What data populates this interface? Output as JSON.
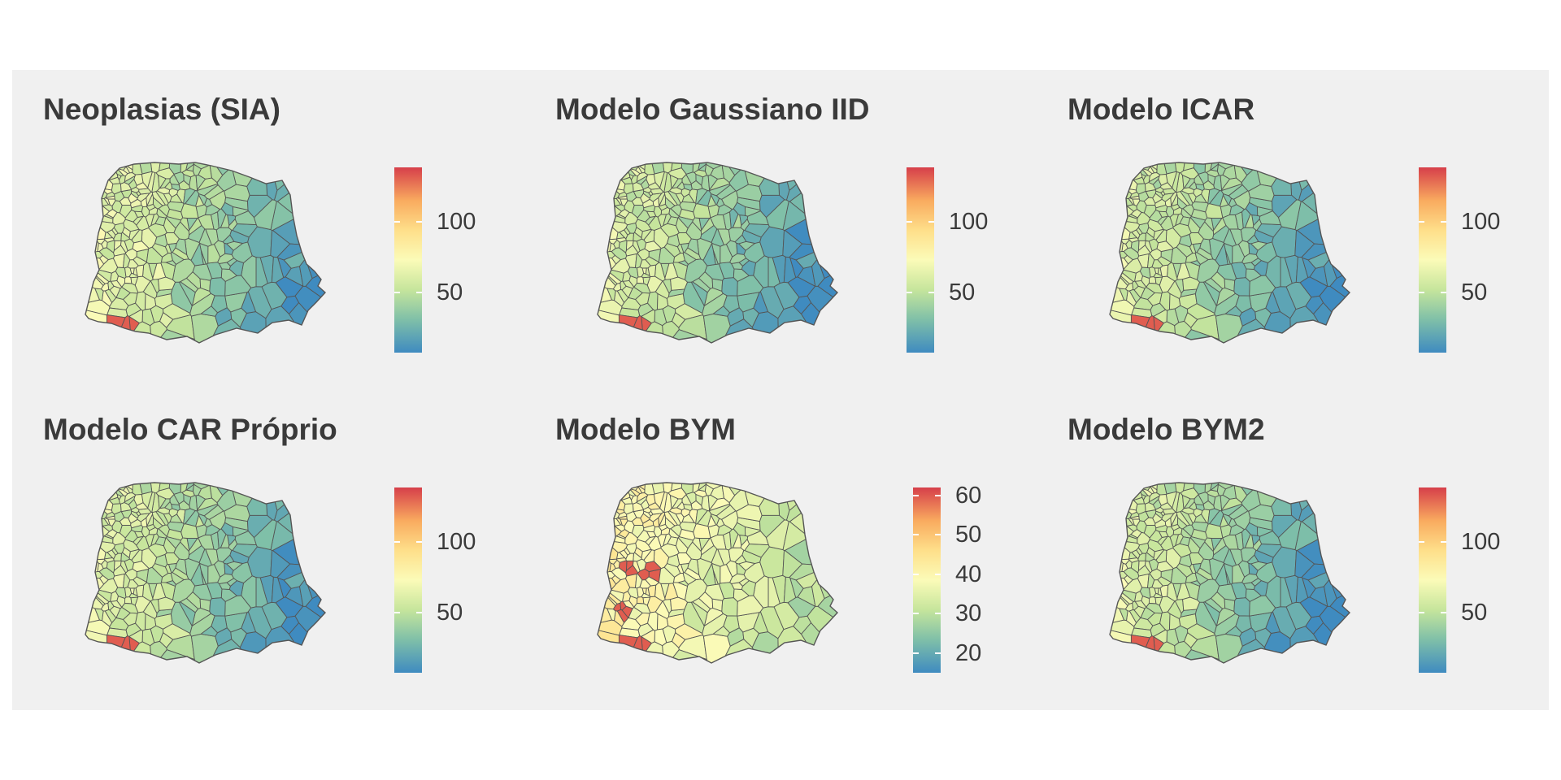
{
  "colors": {
    "background": "#f0f0f0",
    "title_text": "#3a3a3a",
    "palette_low": "#3f8bc0",
    "palette_mid": "#fbfbb8",
    "palette_high": "#d63f4a",
    "border": "#555555"
  },
  "panels": [
    {
      "title": "Neoplasias (SIA)",
      "legend": {
        "min": 8,
        "max": 138,
        "ticks": [
          50,
          100
        ],
        "tick_labels": [
          "50",
          "100"
        ]
      },
      "pattern": {
        "bias": 0.0,
        "east_strength": 1.0,
        "hotspots": [
          [
            0.17,
            0.88
          ],
          [
            0.45,
            0.56
          ]
        ]
      }
    },
    {
      "title": "Modelo Gaussiano IID",
      "legend": {
        "min": 8,
        "max": 138,
        "ticks": [
          50,
          100
        ],
        "tick_labels": [
          "50",
          "100"
        ]
      },
      "pattern": {
        "bias": -0.03,
        "east_strength": 1.0,
        "hotspots": [
          [
            0.17,
            0.88
          ]
        ]
      }
    },
    {
      "title": "Modelo ICAR",
      "legend": {
        "min": 8,
        "max": 138,
        "ticks": [
          50,
          100
        ],
        "tick_labels": [
          "50",
          "100"
        ]
      },
      "pattern": {
        "bias": -0.04,
        "east_strength": 0.95,
        "hotspots": [
          [
            0.17,
            0.88
          ]
        ]
      }
    },
    {
      "title": "Modelo CAR Próprio",
      "legend": {
        "min": 8,
        "max": 138,
        "ticks": [
          50,
          100
        ],
        "tick_labels": [
          "50",
          "100"
        ]
      },
      "pattern": {
        "bias": -0.02,
        "east_strength": 1.0,
        "hotspots": [
          [
            0.17,
            0.88
          ]
        ]
      }
    },
    {
      "title": "Modelo BYM",
      "legend": {
        "min": 15,
        "max": 62,
        "ticks": [
          20,
          30,
          40,
          50,
          60
        ],
        "tick_labels": [
          "20",
          "30",
          "40",
          "50",
          "60"
        ]
      },
      "pattern": {
        "bias": 0.12,
        "east_strength": 0.55,
        "hotspots": [
          [
            0.12,
            0.45
          ],
          [
            0.1,
            0.7
          ],
          [
            0.17,
            0.88
          ],
          [
            0.22,
            0.5
          ]
        ]
      }
    },
    {
      "title": "Modelo BYM2",
      "legend": {
        "min": 8,
        "max": 138,
        "ticks": [
          50,
          100
        ],
        "tick_labels": [
          "50",
          "100"
        ]
      },
      "pattern": {
        "bias": -0.03,
        "east_strength": 1.0,
        "hotspots": [
          [
            0.17,
            0.88
          ]
        ]
      }
    }
  ]
}
